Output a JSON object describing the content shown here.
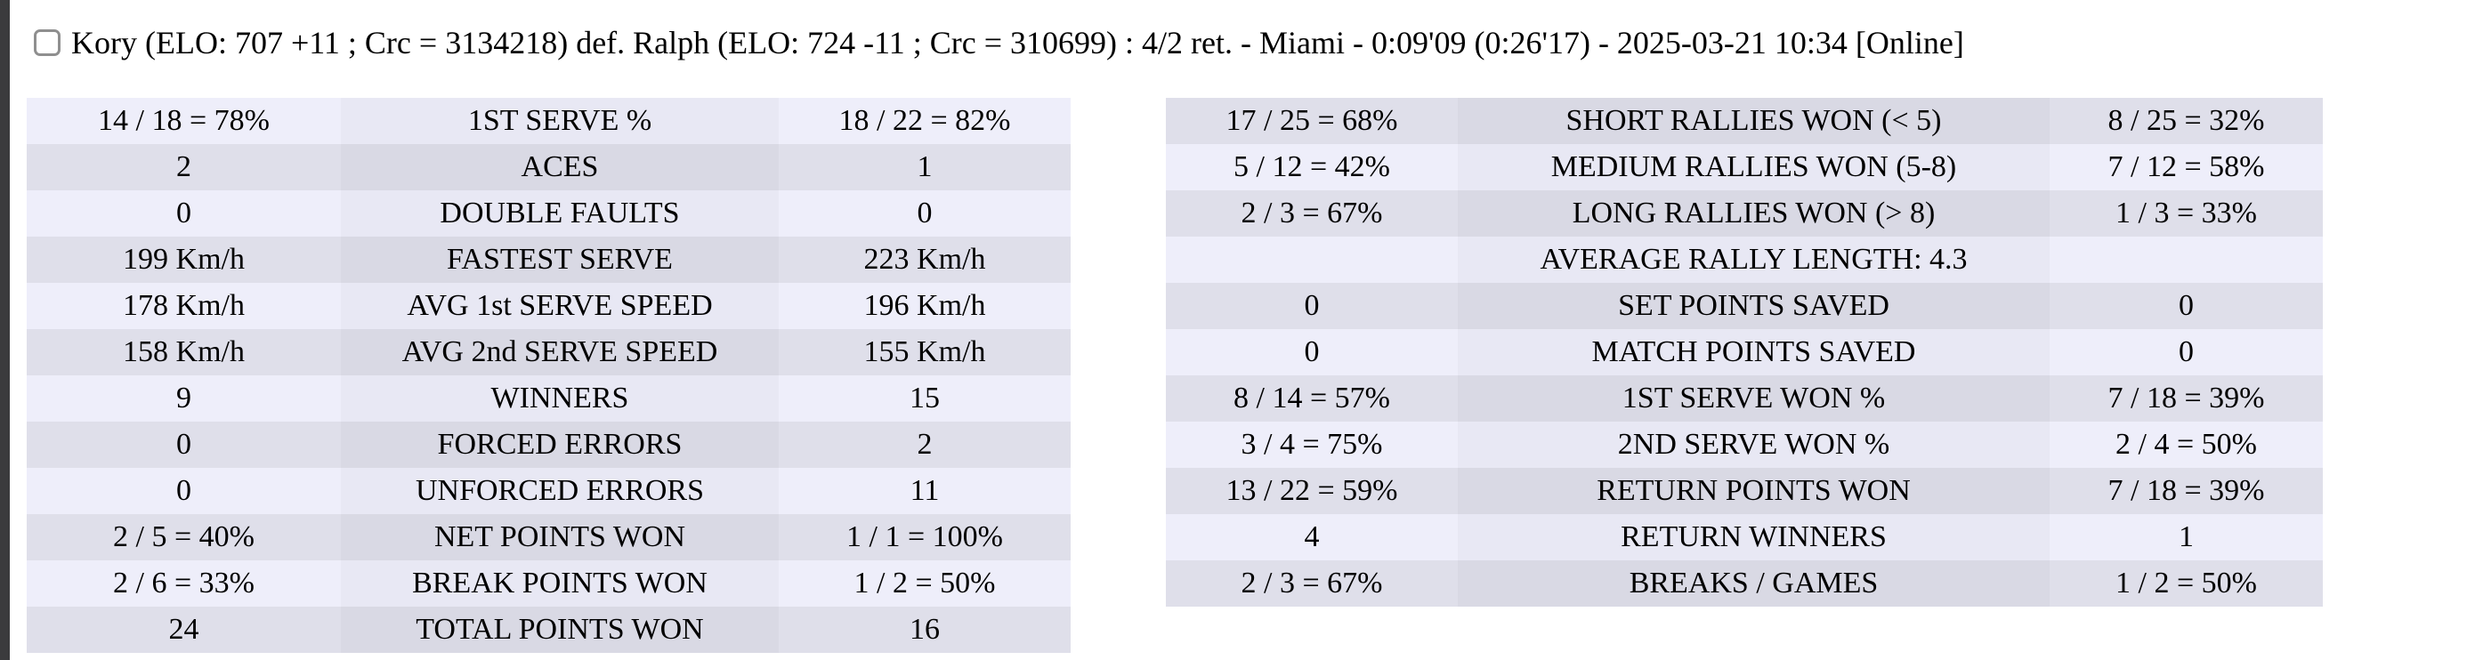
{
  "window": {
    "strip_color": "#3b3b3d",
    "background": "#ffffff"
  },
  "colors": {
    "row_light_outer": "#eeeefa",
    "row_light_mid": "#e8e8f4",
    "row_dark_outer": "#dfdfea",
    "row_dark_mid": "#d9d9e4",
    "text": "#000000",
    "checkbox_border": "#8f8f8f"
  },
  "header": {
    "checkbox_checked": false,
    "match_summary": "Kory (ELO: 707 +11 ; Crc = 3134218) def. Ralph (ELO: 724 -11 ; Crc = 310699) : 4/2 ret. - Miami - 0:09'09 (0:26'17) - 2025-03-21 10:34 [Online]"
  },
  "tables": [
    {
      "id": "serve-stats",
      "first_row_shade": "light",
      "rows": [
        {
          "left": "14 / 18 = 78%",
          "label": "1ST SERVE %",
          "right": "18 / 22 = 82%"
        },
        {
          "left": "2",
          "label": "ACES",
          "right": "1"
        },
        {
          "left": "0",
          "label": "DOUBLE FAULTS",
          "right": "0"
        },
        {
          "left": "199 Km/h",
          "label": "FASTEST SERVE",
          "right": "223 Km/h"
        },
        {
          "left": "178 Km/h",
          "label": "AVG 1st SERVE SPEED",
          "right": "196 Km/h"
        },
        {
          "left": "158 Km/h",
          "label": "AVG 2nd SERVE SPEED",
          "right": "155 Km/h"
        },
        {
          "left": "9",
          "label": "WINNERS",
          "right": "15"
        },
        {
          "left": "0",
          "label": "FORCED ERRORS",
          "right": "2"
        },
        {
          "left": "0",
          "label": "UNFORCED ERRORS",
          "right": "11"
        },
        {
          "left": "2 / 5 = 40%",
          "label": "NET POINTS WON",
          "right": "1 / 1 = 100%"
        },
        {
          "left": "2 / 6 = 33%",
          "label": "BREAK POINTS WON",
          "right": "1 / 2 = 50%"
        },
        {
          "left": "24",
          "label": "TOTAL POINTS WON",
          "right": "16"
        }
      ]
    },
    {
      "id": "rally-stats",
      "first_row_shade": "dark",
      "rows": [
        {
          "left": "17 / 25 = 68%",
          "label": "SHORT RALLIES WON (< 5)",
          "right": "8 / 25 = 32%"
        },
        {
          "left": "5 / 12 = 42%",
          "label": "MEDIUM RALLIES WON (5-8)",
          "right": "7 / 12 = 58%"
        },
        {
          "left": "2 / 3 = 67%",
          "label": "LONG RALLIES WON (> 8)",
          "right": "1 / 3 = 33%"
        },
        {
          "left": "",
          "label": "AVERAGE RALLY LENGTH: 4.3",
          "right": ""
        },
        {
          "left": "0",
          "label": "SET POINTS SAVED",
          "right": "0"
        },
        {
          "left": "0",
          "label": "MATCH POINTS SAVED",
          "right": "0"
        },
        {
          "left": "8 / 14 = 57%",
          "label": "1ST SERVE WON %",
          "right": "7 / 18 = 39%"
        },
        {
          "left": "3 / 4 = 75%",
          "label": "2ND SERVE WON %",
          "right": "2 / 4 = 50%"
        },
        {
          "left": "13 / 22 = 59%",
          "label": "RETURN POINTS WON",
          "right": "7 / 18 = 39%"
        },
        {
          "left": "4",
          "label": "RETURN WINNERS",
          "right": "1"
        },
        {
          "left": "2 / 3 = 67%",
          "label": "BREAKS / GAMES",
          "right": "1 / 2 = 50%"
        }
      ]
    }
  ]
}
